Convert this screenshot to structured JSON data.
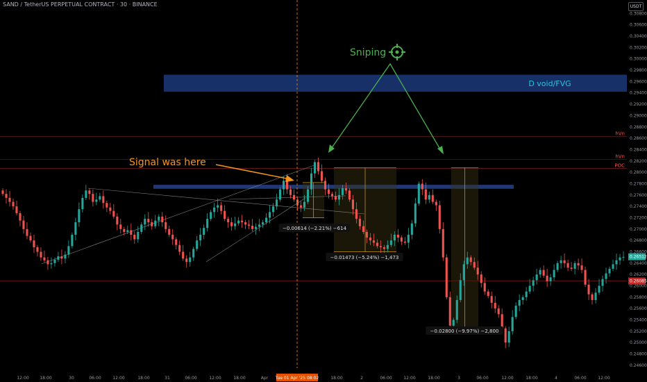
{
  "header": {
    "title": "SAND / TetherUS PERPETUAL CONTRACT · 30 · BINANCE",
    "unit": "USDT"
  },
  "colors": {
    "background": "#000000",
    "candle_up": "#26a69a",
    "candle_down": "#ef5350",
    "annotation_orange": "#f7931a",
    "annotation_green": "#4caf50",
    "zone_blue": "#1e3f8a",
    "range_gold": "#d4a017",
    "level_red": "#b71c1c"
  },
  "annotations": {
    "signal_text": "Signal was here",
    "sniping_text": "Sniping",
    "zone_label": "D void/FVG",
    "measure_1": "−0.00614 (−2.21%) −614",
    "measure_2": "−0.01473 (−5.24%) −1,473",
    "measure_3": "−0.02800 (−9.97%) −2,800",
    "crosshair_date": "Tue 01 Apr '25",
    "crosshair_time": "08:02",
    "target_icon": "crosshair-target-icon"
  },
  "chart_data": {
    "type": "candlestick",
    "symbol": "SAND / TetherUS PERPETUAL CONTRACT",
    "interval": "30",
    "exchange": "BINANCE",
    "ylim": [
      0.2455,
      0.31
    ],
    "yticks": [
      "0.30800",
      "0.30600",
      "0.30400",
      "0.30200",
      "0.30000",
      "0.29800",
      "0.29600",
      "0.29400",
      "0.29200",
      "0.29000",
      "0.28800",
      "0.28600",
      "0.28400",
      "0.28200",
      "0.28000",
      "0.27800",
      "0.27600",
      "0.27400",
      "0.27200",
      "0.27000",
      "0.26800",
      "0.26600",
      "0.26400",
      "0.26200",
      "0.26000",
      "0.25800",
      "0.25600",
      "0.25400",
      "0.25200",
      "0.25000",
      "0.24800",
      "0.24600"
    ],
    "xticks": [
      "12:00",
      "18:00",
      "30",
      "06:00",
      "12:00",
      "18:00",
      "31",
      "06:00",
      "12:00",
      "18:00",
      "Apr",
      "18:00",
      "2",
      "06:00",
      "12:00",
      "18:00",
      "3",
      "06:00",
      "12:00",
      "18:00",
      "4",
      "06:00",
      "12:00"
    ],
    "current_price": "0.26512",
    "marked_price": "0.26085",
    "levels": [
      {
        "label": "hVn",
        "price": 0.2863
      },
      {
        "label": "hVn",
        "price": 0.2823
      },
      {
        "label": "POC",
        "price": 0.2807
      }
    ],
    "zones": [
      {
        "label": "D void/FVG",
        "from": 0.2942,
        "to": 0.2972
      },
      {
        "label": "",
        "from": 0.2771,
        "to": 0.2778
      }
    ],
    "closes": [
      0.2762,
      0.2755,
      0.2748,
      0.274,
      0.2728,
      0.2715,
      0.27,
      0.2688,
      0.268,
      0.2668,
      0.266,
      0.265,
      0.2645,
      0.2638,
      0.264,
      0.2646,
      0.2652,
      0.2648,
      0.2655,
      0.267,
      0.269,
      0.2712,
      0.2735,
      0.2755,
      0.2768,
      0.2762,
      0.2748,
      0.2752,
      0.2758,
      0.2746,
      0.2738,
      0.2732,
      0.2722,
      0.2708,
      0.27,
      0.2695,
      0.2698,
      0.269,
      0.2682,
      0.2695,
      0.2708,
      0.2718,
      0.2712,
      0.2705,
      0.2715,
      0.2722,
      0.2712,
      0.27,
      0.269,
      0.2682,
      0.2672,
      0.266,
      0.2648,
      0.2642,
      0.265,
      0.2665,
      0.268,
      0.269,
      0.2702,
      0.2718,
      0.273,
      0.2738,
      0.2742,
      0.2732,
      0.2718,
      0.2712,
      0.2705,
      0.271,
      0.2715,
      0.2712,
      0.2708,
      0.2706,
      0.27,
      0.2704,
      0.2708,
      0.2712,
      0.272,
      0.273,
      0.274,
      0.2752,
      0.277,
      0.2785,
      0.277,
      0.276,
      0.2752,
      0.2742,
      0.2738,
      0.2748,
      0.277,
      0.2798,
      0.2818,
      0.2802,
      0.2785,
      0.277,
      0.2762,
      0.2758,
      0.2752,
      0.276,
      0.2772,
      0.2768,
      0.2752,
      0.2735,
      0.2718,
      0.2705,
      0.2695,
      0.2685,
      0.268,
      0.2676,
      0.267,
      0.2668,
      0.2665,
      0.2672,
      0.268,
      0.269,
      0.2685,
      0.2678,
      0.2676,
      0.269,
      0.271,
      0.2745,
      0.278,
      0.277,
      0.2752,
      0.276,
      0.2748,
      0.2742,
      0.27,
      0.265,
      0.258,
      0.253,
      0.254,
      0.2575,
      0.261,
      0.2638,
      0.265,
      0.2642,
      0.2632,
      0.262,
      0.2605,
      0.259,
      0.2582,
      0.257,
      0.256,
      0.255,
      0.2525,
      0.25,
      0.252,
      0.2545,
      0.2565,
      0.2575,
      0.258,
      0.259,
      0.26,
      0.261,
      0.262,
      0.2628,
      0.2618,
      0.2608,
      0.2615,
      0.2628,
      0.264,
      0.2645,
      0.264,
      0.2632,
      0.263,
      0.264,
      0.2636,
      0.2628,
      0.2602,
      0.2585,
      0.2575,
      0.2588,
      0.26,
      0.2612,
      0.2622,
      0.263,
      0.2638,
      0.2645,
      0.265,
      0.2651
    ]
  }
}
